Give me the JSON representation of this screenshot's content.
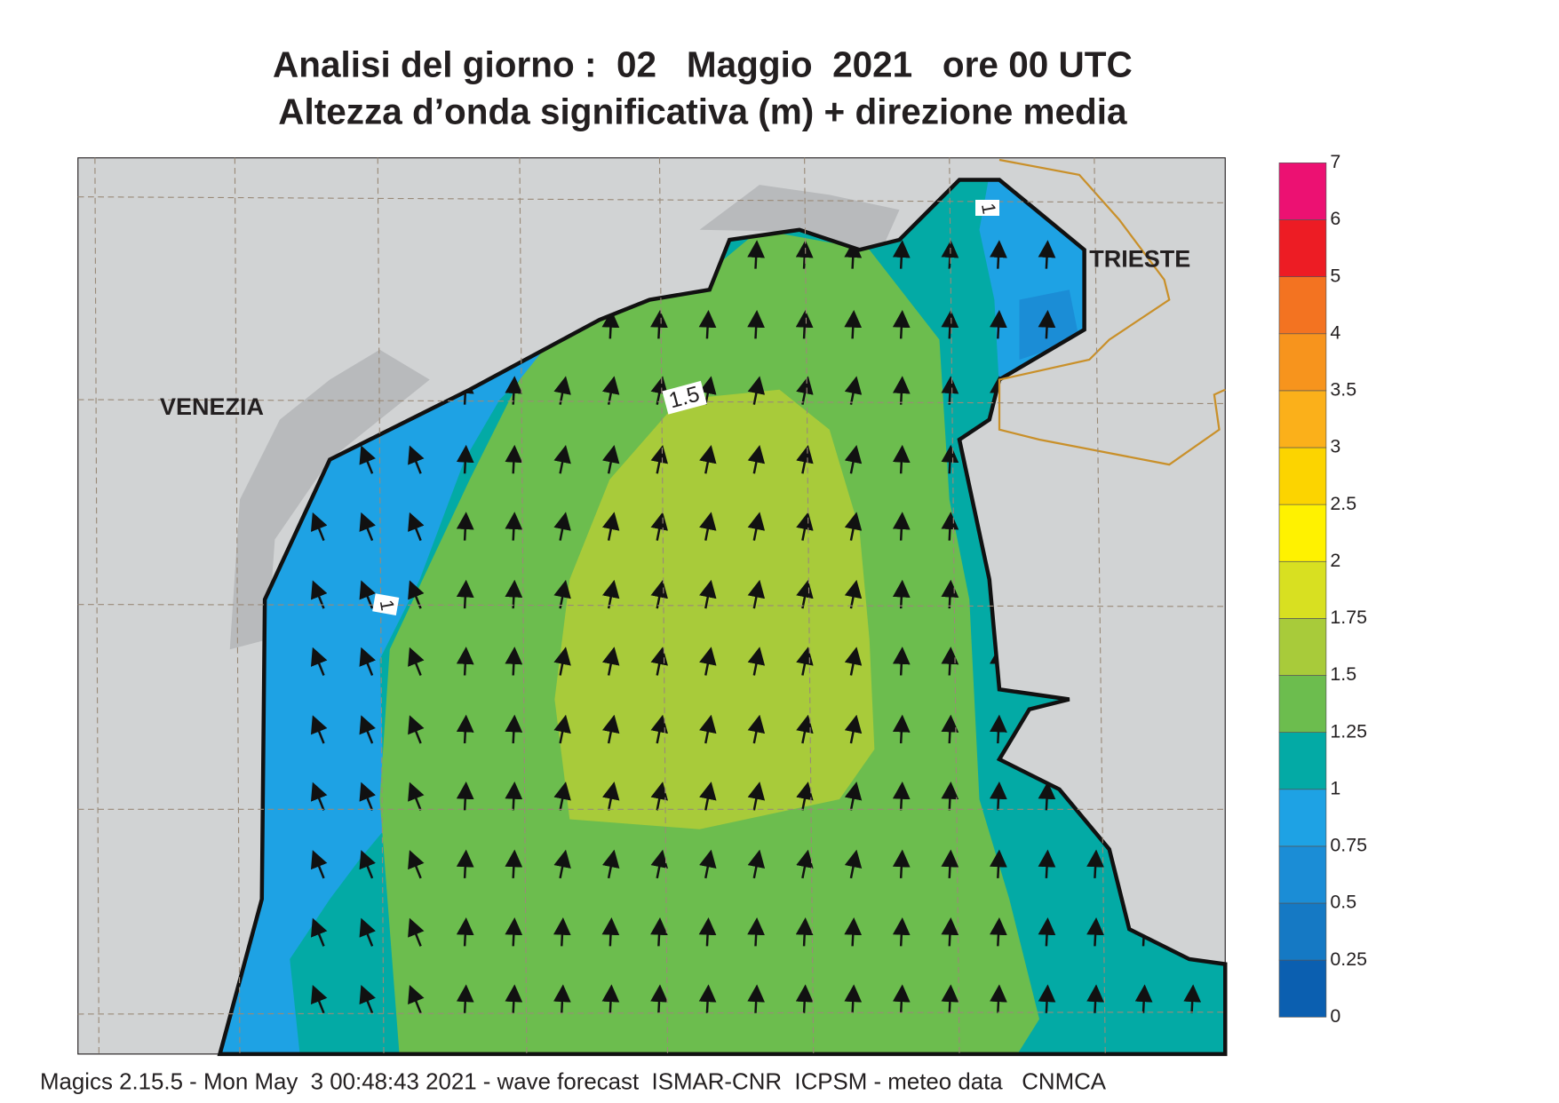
{
  "title": "Analisi del giorno :  02   Maggio  2021   ore 00 UTC",
  "subtitle": "Altezza d’onda significativa (m) + direzione media",
  "map": {
    "places": [
      "VENEZIA",
      "TRIESTE"
    ],
    "contour_labels": [
      "1",
      "1.5",
      "1"
    ]
  },
  "colorbar": {
    "levels": [
      0,
      0.25,
      0.5,
      0.75,
      1,
      1.25,
      1.5,
      1.75,
      2,
      2.5,
      3,
      3.5,
      4,
      5,
      6,
      7
    ],
    "colors": [
      "#0b5fb0",
      "#1579c4",
      "#1b8dd6",
      "#1ea2e4",
      "#03aaa5",
      "#6cbd4e",
      "#a8cb3a",
      "#d8e021",
      "#fff200",
      "#fcd400",
      "#fbb01a",
      "#f7941d",
      "#f37321",
      "#ed1c24",
      "#ec1172"
    ]
  },
  "footer": "Magics 2.15.5 - Mon May  3 00:48:43 2021 - wave forecast  ISMAR-CNR  ICPSM - meteo data   CNMCA"
}
